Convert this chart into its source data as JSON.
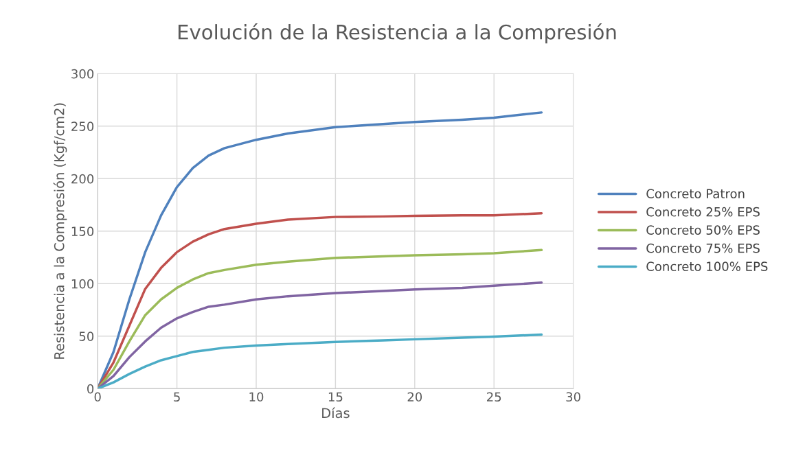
{
  "chart_data": {
    "type": "line",
    "title": "Evolución de la Resistencia a la Compresión",
    "xlabel": "Días",
    "ylabel": "Resistencia a la Compresión (Kgf/cm2)",
    "x": [
      0,
      1,
      2,
      3,
      4,
      5,
      6,
      7,
      8,
      10,
      12,
      15,
      18,
      20,
      23,
      25,
      28
    ],
    "series": [
      {
        "name": "Concreto Patron",
        "color": "#4f81bd",
        "values": [
          0,
          35,
          85,
          130,
          165,
          192,
          210,
          222,
          229,
          237,
          243,
          249,
          252,
          254,
          256,
          258,
          263
        ]
      },
      {
        "name": "Concreto 25% EPS",
        "color": "#c0504d",
        "values": [
          0,
          25,
          60,
          95,
          115,
          130,
          140,
          147,
          152,
          157,
          161,
          163.5,
          164,
          164.5,
          165,
          165,
          167
        ]
      },
      {
        "name": "Concreto 50% EPS",
        "color": "#9bbb59",
        "values": [
          0,
          18,
          45,
          70,
          85,
          96,
          104,
          110,
          113,
          118,
          121,
          124.5,
          126,
          127,
          128,
          129,
          132
        ]
      },
      {
        "name": "Concreto 75% EPS",
        "color": "#8064a2",
        "values": [
          0,
          12,
          30,
          45,
          58,
          67,
          73,
          78,
          80,
          85,
          88,
          91,
          93,
          94.5,
          96,
          98,
          101
        ]
      },
      {
        "name": "Concreto 100% EPS",
        "color": "#4bacc6",
        "values": [
          0,
          6,
          14,
          21,
          27,
          31,
          35,
          37,
          39,
          41,
          42.5,
          44.5,
          46,
          47,
          48.5,
          49.5,
          51.5
        ]
      }
    ],
    "xlim": [
      0,
      30
    ],
    "xticks": [
      0,
      5,
      10,
      15,
      20,
      25,
      30
    ],
    "ylim": [
      0,
      300
    ],
    "yticks": [
      0,
      50,
      100,
      150,
      200,
      250,
      300
    ],
    "grid": true,
    "legend": "right",
    "marker": "none",
    "line_style": "solid"
  }
}
